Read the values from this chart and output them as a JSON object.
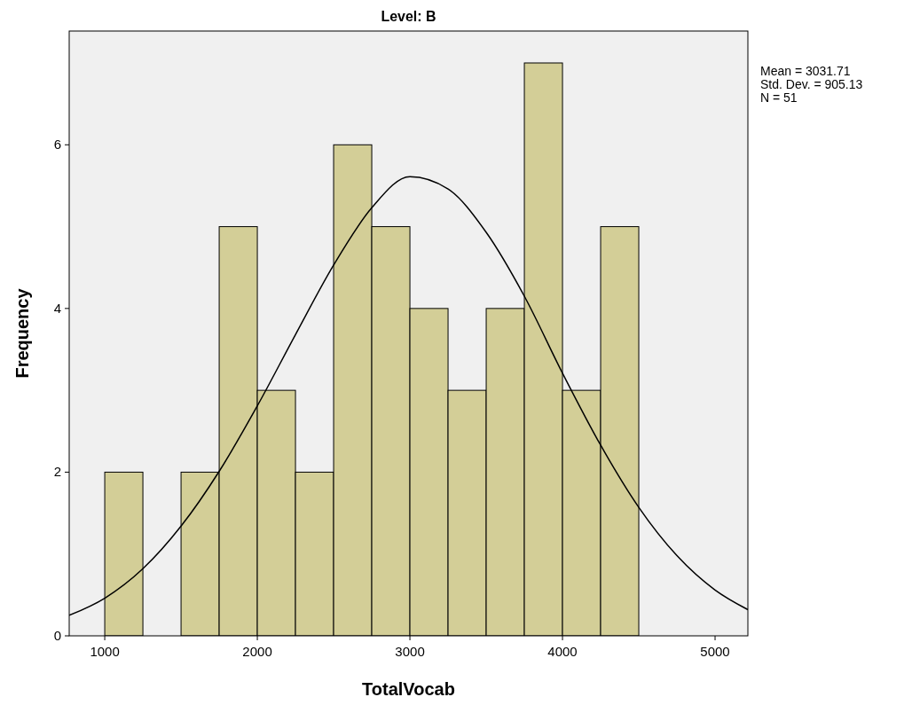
{
  "chart_data": {
    "type": "histogram",
    "title": "Level: B",
    "xlabel": "TotalVocab",
    "ylabel": "Frequency",
    "bins": [
      1000,
      1250,
      1500,
      1750,
      2000,
      2250,
      2500,
      2750,
      3000,
      3250,
      3500,
      3750,
      4000,
      4250,
      4500
    ],
    "values": [
      2,
      0,
      2,
      5,
      3,
      2,
      6,
      5,
      4,
      3,
      4,
      7,
      3,
      5
    ],
    "color": "#d3ce97",
    "series": [
      {
        "type": "line",
        "color": "#000000",
        "x": [
          767,
          1000,
          1250,
          1500,
          1750,
          2000,
          2250,
          2500,
          2750,
          3000,
          3250,
          3500,
          3750,
          4000,
          4250,
          4500,
          4750,
          5000,
          5215
        ],
        "values": [
          0.25,
          0.46,
          0.82,
          1.34,
          2.01,
          2.81,
          3.68,
          4.53,
          5.23,
          5.61,
          5.46,
          4.93,
          4.15,
          3.21,
          2.33,
          1.57,
          0.98,
          0.56,
          0.32
        ]
      }
    ],
    "xlim": [
      767,
      5215
    ],
    "ylim": [
      0,
      7.39
    ],
    "xticks": [
      1000,
      2000,
      3000,
      4000,
      5000
    ],
    "yticks": [
      0,
      2,
      4,
      6
    ],
    "grid": false,
    "annotations": [
      "Mean = 3031.71",
      "Std. Dev. = 905.13",
      "N = 51"
    ]
  }
}
